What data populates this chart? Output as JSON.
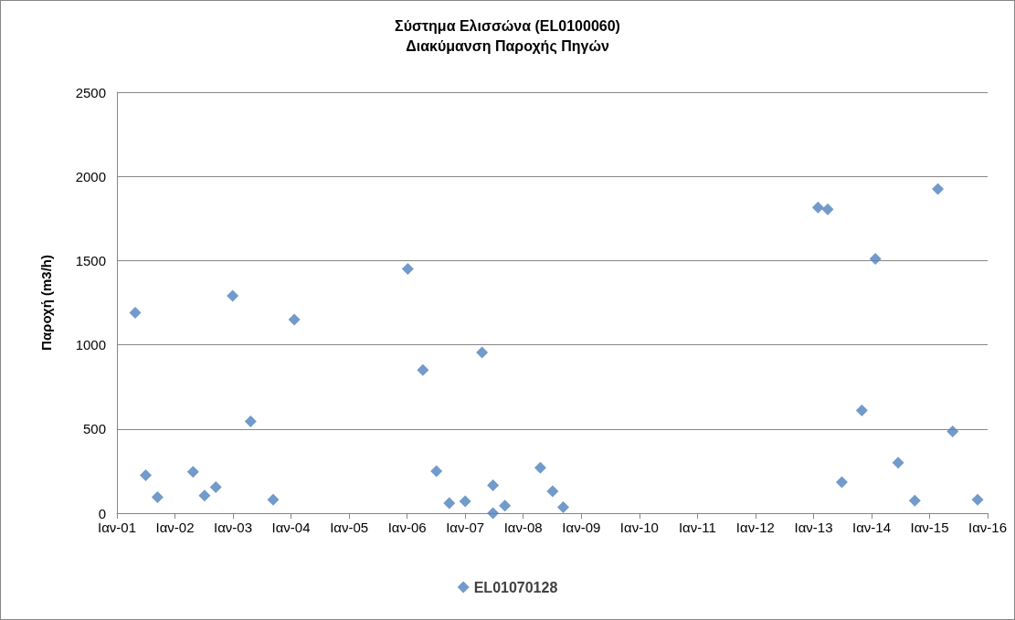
{
  "chart_data": {
    "type": "scatter",
    "title": "Σύστημα Ελισσώνα (EL0100060)",
    "subtitle": "Διακύμανση Παροχής Πηγών",
    "ylabel": "Παροχή (m3/h)",
    "x": [
      "2001-04-26",
      "2001-07-01",
      "2001-09-13",
      "2002-04-25",
      "2002-07-06",
      "2002-09-15",
      "2002-12-30",
      "2003-04-22",
      "2003-09-11",
      "2004-01-22",
      "2006-01-05",
      "2006-04-10",
      "2006-07-04",
      "2006-09-23",
      "2007-01-01",
      "2007-04-17",
      "2007-06-25",
      "2007-06-25",
      "2007-09-08",
      "2008-04-18",
      "2008-07-04",
      "2008-09-09",
      "2013-01-29",
      "2013-03-31",
      "2013-06-28",
      "2013-11-01",
      "2014-01-25",
      "2014-06-17",
      "2014-09-30",
      "2015-02-22",
      "2015-05-26",
      "2015-10-30"
    ],
    "series": [
      {
        "name": "EL01070128",
        "color": "#4f81bd",
        "values": [
          1190,
          225,
          95,
          245,
          105,
          155,
          1290,
          545,
          80,
          1150,
          1450,
          850,
          250,
          60,
          70,
          955,
          165,
          0,
          45,
          270,
          130,
          35,
          1815,
          1805,
          185,
          610,
          1510,
          300,
          75,
          1925,
          485,
          80
        ]
      }
    ],
    "xlim": [
      "2001-01-01",
      "2016-01-01"
    ],
    "xticks": [
      {
        "value": "2001-01-01",
        "label": "Ιαν-01"
      },
      {
        "value": "2002-01-01",
        "label": "Ιαν-02"
      },
      {
        "value": "2003-01-01",
        "label": "Ιαν-03"
      },
      {
        "value": "2004-01-01",
        "label": "Ιαν-04"
      },
      {
        "value": "2005-01-01",
        "label": "Ιαν-05"
      },
      {
        "value": "2006-01-01",
        "label": "Ιαν-06"
      },
      {
        "value": "2007-01-01",
        "label": "Ιαν-07"
      },
      {
        "value": "2008-01-01",
        "label": "Ιαν-08"
      },
      {
        "value": "2009-01-01",
        "label": "Ιαν-09"
      },
      {
        "value": "2010-01-01",
        "label": "Ιαν-10"
      },
      {
        "value": "2011-01-01",
        "label": "Ιαν-11"
      },
      {
        "value": "2012-01-01",
        "label": "Ιαν-12"
      },
      {
        "value": "2013-01-01",
        "label": "Ιαν-13"
      },
      {
        "value": "2014-01-01",
        "label": "Ιαν-14"
      },
      {
        "value": "2015-01-01",
        "label": "Ιαν-15"
      },
      {
        "value": "2016-01-01",
        "label": "Ιαν-16"
      }
    ],
    "ylim": [
      0,
      2500
    ],
    "yticks": [
      0,
      500,
      1000,
      1500,
      2000,
      2500
    ],
    "grid": "y",
    "legend": "bottom",
    "marker": "diamond"
  }
}
